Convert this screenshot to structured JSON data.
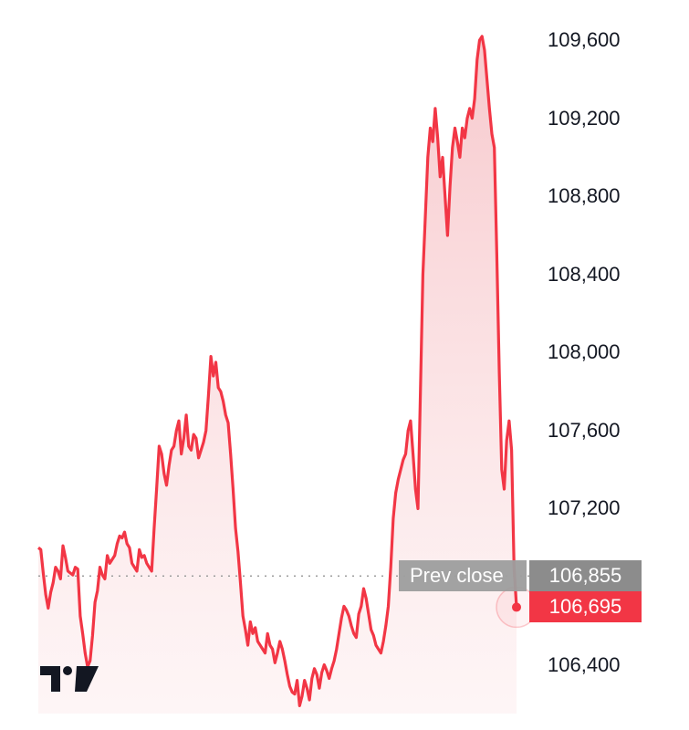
{
  "chart_data": {
    "type": "area",
    "series": [
      {
        "values": [
          107000,
          106990,
          106870,
          106760,
          106690,
          106770,
          106820,
          106900,
          106880,
          106840,
          107010,
          106950,
          106880,
          106870,
          106860,
          106900,
          106890,
          106650,
          106560,
          106460,
          106390,
          106420,
          106550,
          106720,
          106780,
          106900,
          106860,
          106840,
          106960,
          106920,
          106940,
          106960,
          107020,
          107060,
          107050,
          107080,
          107020,
          107000,
          106920,
          106900,
          106880,
          106990,
          106950,
          106960,
          106920,
          106900,
          106880,
          107100,
          107300,
          107520,
          107480,
          107380,
          107320,
          107420,
          107500,
          107520,
          107600,
          107650,
          107480,
          107560,
          107680,
          107520,
          107500,
          107580,
          107560,
          107460,
          107500,
          107540,
          107600,
          107780,
          107980,
          107880,
          107950,
          107820,
          107800,
          107750,
          107680,
          107640,
          107480,
          107300,
          107100,
          106980,
          106820,
          106650,
          106580,
          106500,
          106620,
          106560,
          106590,
          106520,
          106500,
          106480,
          106460,
          106560,
          106500,
          106480,
          106410,
          106460,
          106520,
          106480,
          106420,
          106350,
          106290,
          106260,
          106250,
          106320,
          106190,
          106240,
          106320,
          106280,
          106220,
          106330,
          106380,
          106350,
          106280,
          106360,
          106400,
          106370,
          106330,
          106380,
          106420,
          106480,
          106560,
          106640,
          106700,
          106680,
          106650,
          106600,
          106560,
          106540,
          106660,
          106700,
          106790,
          106740,
          106660,
          106580,
          106550,
          106500,
          106480,
          106460,
          106520,
          106600,
          106700,
          106900,
          107150,
          107280,
          107350,
          107400,
          107450,
          107480,
          107600,
          107650,
          107480,
          107300,
          107200,
          107800,
          108400,
          108700,
          109000,
          109150,
          109080,
          109250,
          109100,
          108900,
          109000,
          108800,
          108600,
          108850,
          109050,
          109150,
          109080,
          109000,
          109150,
          109100,
          109200,
          109250,
          109200,
          109300,
          109500,
          109600,
          109620,
          109550,
          109400,
          109250,
          109120,
          109050,
          108500,
          107900,
          107400,
          107300,
          107550,
          107650,
          107500,
          106900,
          106695
        ],
        "last": 106695
      }
    ],
    "ylim": [
      106150,
      109750
    ],
    "y_ticks": [
      "109,600",
      "109,200",
      "108,800",
      "108,400",
      "108,000",
      "107,600",
      "107,200",
      "106,400"
    ],
    "y_tick_values": [
      109600,
      109200,
      108800,
      108400,
      108000,
      107600,
      107200,
      106400
    ],
    "prev_close": {
      "label": "Prev close",
      "value": 106855,
      "value_label": "106,855"
    },
    "last_value_label": "106,695",
    "grid": false,
    "legend": "none",
    "colors": {
      "line": "#f23645",
      "fill_top": "#f7c6ca",
      "fill_bottom": "#fdeff0",
      "prev_line": "#9e9e9e",
      "prev_badge": "#8c8c8c",
      "last_badge": "#f23645"
    }
  },
  "logo": {
    "name": "tradingview-logo"
  }
}
